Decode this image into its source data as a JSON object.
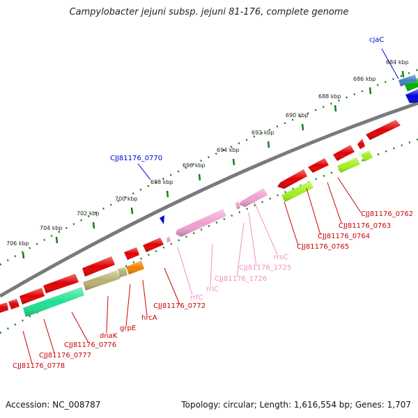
{
  "title": "Campylobacter jejuni subsp. jejuni 81-176, complete genome",
  "footer": {
    "accession": "Accession: NC_008787",
    "summary": "Topology: circular; Length: 1,616,554 bp; Genes: 1,707"
  },
  "colors": {
    "backbone": "#808080",
    "ruler": "#1a7a1a",
    "cds": "#e00000",
    "rrna": "#f0a0d0",
    "label_cds": "#cc0000",
    "label_rrna": "#f090c0",
    "label_highlight": "#0000cc",
    "gene_green": "#20e090",
    "gene_olive": "#b8b070",
    "gene_orange": "#f08000",
    "gene_lime": "#a0f020",
    "gene_blue": "#0000e0",
    "gene_steel": "#4080c0"
  },
  "ruler_ticks": [
    "684 kbp",
    "686 kbp",
    "688 kbp",
    "690 kbp",
    "692 kbp",
    "694 kbp",
    "696 kbp",
    "698 kbp",
    "700 kbp",
    "702 kbp",
    "704 kbp",
    "706 kbp"
  ],
  "gene_labels": [
    {
      "text": "cjaC",
      "class": "highlight"
    },
    {
      "text": "CJJ81176_0770",
      "class": "highlight"
    },
    {
      "text": "CJJ81176_0762",
      "class": "cds"
    },
    {
      "text": "CJJ81176_0763",
      "class": "cds"
    },
    {
      "text": "CJJ81176_0764",
      "class": "cds"
    },
    {
      "text": "CJJ81176_0765",
      "class": "cds"
    },
    {
      "text": "rrsC",
      "class": "rrna"
    },
    {
      "text": "CJJ81176_1725",
      "class": "rrna"
    },
    {
      "text": "CJJ81176_1726",
      "class": "rrna"
    },
    {
      "text": "rrlC",
      "class": "rrna"
    },
    {
      "text": "rrfC",
      "class": "rrna"
    },
    {
      "text": "CJJ81176_0772",
      "class": "cds"
    },
    {
      "text": "hrcA",
      "class": "cds"
    },
    {
      "text": "grpE",
      "class": "cds"
    },
    {
      "text": "dnaK",
      "class": "cds"
    },
    {
      "text": "CJJ81176_0776",
      "class": "cds"
    },
    {
      "text": "CJJ81176_0777",
      "class": "cds"
    },
    {
      "text": "CJJ81176_0778",
      "class": "cds"
    }
  ]
}
